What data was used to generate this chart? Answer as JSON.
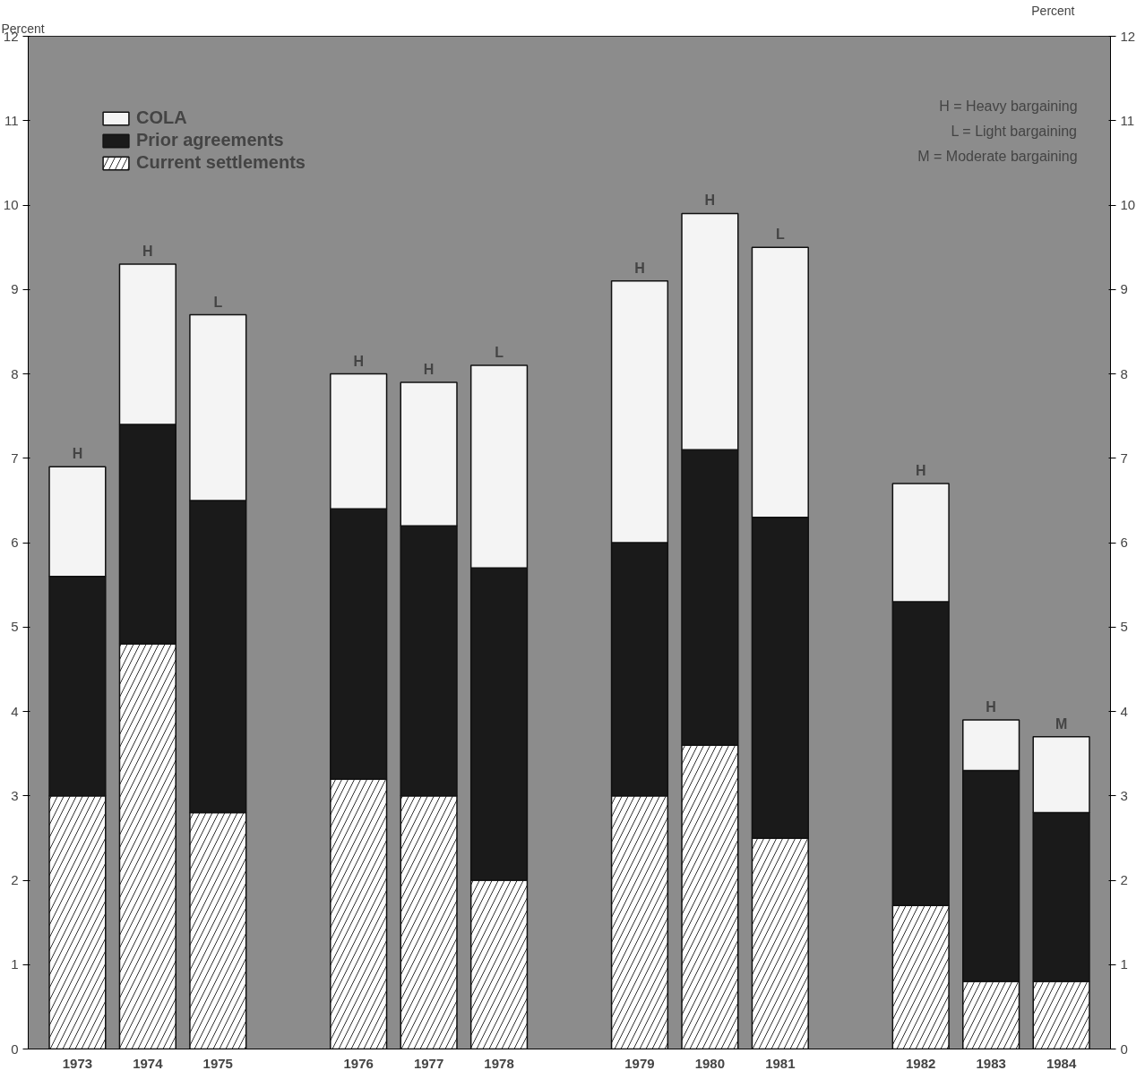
{
  "chart_data": {
    "type": "bar",
    "stacked": true,
    "ylabel": "Percent",
    "y2label": "Percent",
    "categories": [
      "1973",
      "1974",
      "1975",
      "1976",
      "1977",
      "1978",
      "1979",
      "1980",
      "1981",
      "1982",
      "1983",
      "1984"
    ],
    "series": [
      {
        "name": "Current settlements",
        "color": "#ffffff",
        "values": [
          3.0,
          4.8,
          2.8,
          3.2,
          3.0,
          2.0,
          3.0,
          3.6,
          2.5,
          1.7,
          0.8,
          0.8
        ]
      },
      {
        "name": "Prior agreements",
        "color": "#1a1a1a",
        "values": [
          2.6,
          2.6,
          3.7,
          3.2,
          3.2,
          3.7,
          3.0,
          3.5,
          3.8,
          3.6,
          2.5,
          2.0
        ]
      },
      {
        "name": "COLA",
        "color": "#f4f4f4",
        "values": [
          1.3,
          1.9,
          2.2,
          1.6,
          1.7,
          2.4,
          3.1,
          2.8,
          3.2,
          1.4,
          0.6,
          0.9
        ]
      }
    ],
    "ylim": [
      0,
      12
    ],
    "yticks": [
      0,
      1,
      2,
      3,
      4,
      5,
      6,
      7,
      8,
      9,
      10,
      11,
      12
    ],
    "y2lim": [
      0,
      12
    ],
    "y2ticks": [
      0,
      1,
      2,
      3,
      4,
      5,
      6,
      7,
      8,
      9,
      10,
      11,
      12
    ],
    "grid": false,
    "legend": "top left",
    "annotations": [
      {
        "text": "H",
        "x": "1973",
        "y": 6.9
      },
      {
        "text": "H",
        "x": "1974",
        "y": 9.3
      },
      {
        "text": "L",
        "x": "1975",
        "y": 8.7
      },
      {
        "text": "H",
        "x": "1976",
        "y": 8.0
      },
      {
        "text": "H",
        "x": "1977",
        "y": 7.9
      },
      {
        "text": "L",
        "x": "1978",
        "y": 8.1
      },
      {
        "text": "H",
        "x": "1979",
        "y": 9.1
      },
      {
        "text": "H",
        "x": "1980",
        "y": 9.9
      },
      {
        "text": "L",
        "x": "1981",
        "y": 9.5
      },
      {
        "text": "H",
        "x": "1982",
        "y": 6.7
      },
      {
        "text": "H",
        "x": "1983",
        "y": 3.9
      },
      {
        "text": "M",
        "x": "1984",
        "y": 3.7
      },
      "H  =  Heavy bargaining",
      "L  =  Light bargaining",
      "M  =  Moderate bargaining"
    ]
  }
}
